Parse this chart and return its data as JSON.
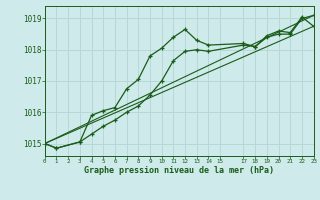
{
  "title": "Graphe pression niveau de la mer (hPa)",
  "background_color": "#ceeaea",
  "grid_color": "#b8d8d8",
  "line_color": "#1a5c1a",
  "ylim": [
    1014.6,
    1019.4
  ],
  "yticks": [
    1015,
    1016,
    1017,
    1018,
    1019
  ],
  "xlim": [
    0,
    23
  ],
  "xticks": [
    0,
    1,
    2,
    3,
    4,
    5,
    6,
    7,
    8,
    9,
    10,
    11,
    12,
    13,
    14,
    15,
    17,
    18,
    19,
    20,
    21,
    22,
    23
  ],
  "xtick_labels": [
    "0",
    "1",
    "2",
    "3",
    "4",
    "5",
    "6",
    "7",
    "8",
    "9",
    "10",
    "11",
    "12",
    "13",
    "14",
    "15",
    "17",
    "18",
    "19",
    "20",
    "21",
    "22",
    "23"
  ],
  "series1_x": [
    0,
    1,
    3,
    4,
    5,
    6,
    7,
    8,
    9,
    10,
    11,
    12,
    13,
    14,
    17,
    18,
    19,
    20,
    21,
    22,
    23
  ],
  "series1_y": [
    1015.0,
    1014.85,
    1015.05,
    1015.3,
    1015.55,
    1015.75,
    1016.0,
    1016.2,
    1016.55,
    1017.0,
    1017.65,
    1017.95,
    1018.0,
    1017.95,
    1018.15,
    1018.1,
    1018.4,
    1018.5,
    1018.5,
    1019.0,
    1019.1
  ],
  "series2_x": [
    0,
    1,
    3,
    4,
    5,
    6,
    7,
    8,
    9,
    10,
    11,
    12,
    13,
    14,
    17,
    18,
    19,
    20,
    21,
    22,
    23
  ],
  "series2_y": [
    1015.0,
    1014.85,
    1015.05,
    1015.9,
    1016.05,
    1016.15,
    1016.75,
    1017.05,
    1017.8,
    1018.05,
    1018.4,
    1018.65,
    1018.3,
    1018.15,
    1018.2,
    1018.1,
    1018.45,
    1018.6,
    1018.55,
    1019.05,
    1018.75
  ],
  "series3_x": [
    0,
    23
  ],
  "series3_y": [
    1015.0,
    1019.1
  ],
  "series4_x": [
    0,
    23
  ],
  "series4_y": [
    1015.0,
    1018.75
  ]
}
